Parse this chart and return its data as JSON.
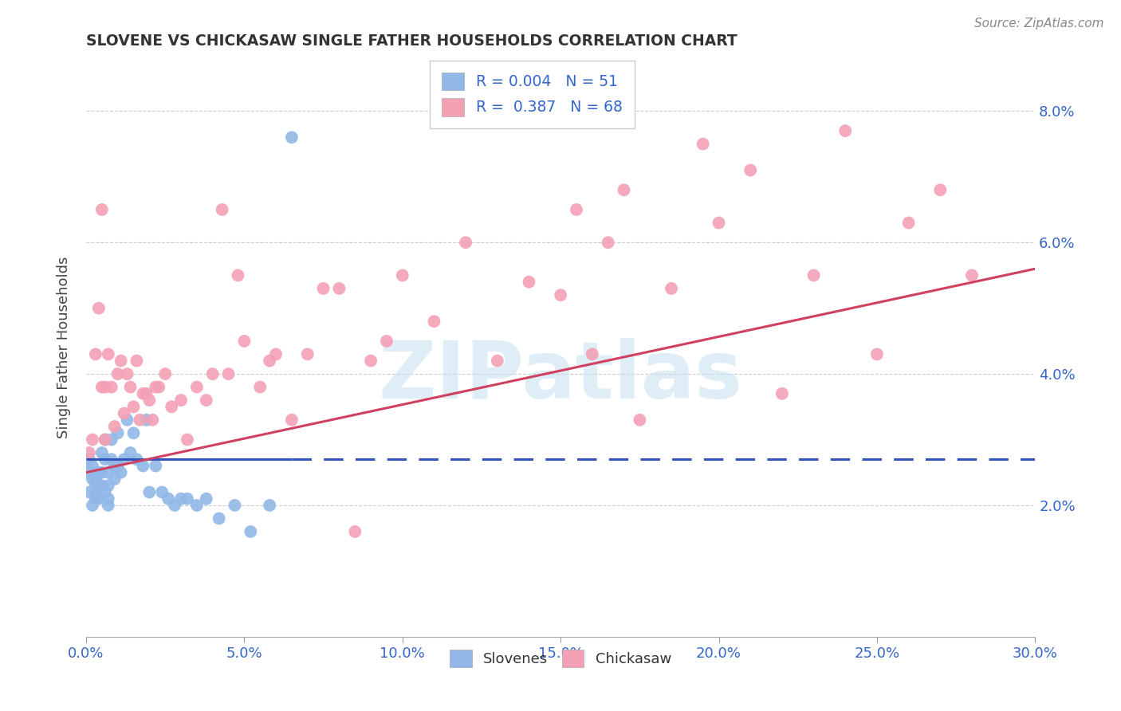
{
  "title": "SLOVENE VS CHICKASAW SINGLE FATHER HOUSEHOLDS CORRELATION CHART",
  "source": "Source: ZipAtlas.com",
  "ylabel": "Single Father Households",
  "xlabel_ticks": [
    "0.0%",
    "5.0%",
    "10.0%",
    "15.0%",
    "20.0%",
    "25.0%",
    "30.0%"
  ],
  "ylabel_ticks": [
    "2.0%",
    "4.0%",
    "6.0%",
    "8.0%"
  ],
  "xlim": [
    0.0,
    0.3
  ],
  "ylim": [
    -0.002,
    0.09
  ],
  "plot_ylim": [
    0.0,
    0.088
  ],
  "slovene_R": 0.004,
  "slovene_N": 51,
  "chickasaw_R": 0.387,
  "chickasaw_N": 68,
  "slovene_color": "#91B8E8",
  "chickasaw_color": "#F4A0B5",
  "trend_slovene_color": "#3355BB",
  "trend_chickasaw_color": "#D04060",
  "watermark_color": "#C5DFF0",
  "slovene_x": [
    0.001,
    0.001,
    0.001,
    0.002,
    0.002,
    0.002,
    0.003,
    0.003,
    0.003,
    0.003,
    0.004,
    0.004,
    0.004,
    0.005,
    0.005,
    0.005,
    0.006,
    0.006,
    0.006,
    0.007,
    0.007,
    0.007,
    0.007,
    0.008,
    0.008,
    0.009,
    0.009,
    0.01,
    0.01,
    0.011,
    0.012,
    0.013,
    0.014,
    0.015,
    0.016,
    0.018,
    0.019,
    0.02,
    0.022,
    0.024,
    0.026,
    0.028,
    0.03,
    0.032,
    0.035,
    0.038,
    0.042,
    0.047,
    0.052,
    0.058,
    0.065
  ],
  "slovene_y": [
    0.027,
    0.025,
    0.022,
    0.026,
    0.024,
    0.02,
    0.023,
    0.024,
    0.022,
    0.021,
    0.025,
    0.023,
    0.021,
    0.028,
    0.025,
    0.023,
    0.03,
    0.027,
    0.022,
    0.025,
    0.023,
    0.021,
    0.02,
    0.03,
    0.027,
    0.026,
    0.024,
    0.031,
    0.026,
    0.025,
    0.027,
    0.033,
    0.028,
    0.031,
    0.027,
    0.026,
    0.033,
    0.022,
    0.026,
    0.022,
    0.021,
    0.02,
    0.021,
    0.021,
    0.02,
    0.021,
    0.018,
    0.02,
    0.016,
    0.02,
    0.076
  ],
  "chickasaw_x": [
    0.001,
    0.002,
    0.003,
    0.004,
    0.005,
    0.005,
    0.006,
    0.006,
    0.007,
    0.008,
    0.009,
    0.01,
    0.011,
    0.012,
    0.013,
    0.014,
    0.015,
    0.016,
    0.017,
    0.018,
    0.019,
    0.02,
    0.021,
    0.022,
    0.023,
    0.025,
    0.027,
    0.03,
    0.032,
    0.035,
    0.038,
    0.04,
    0.043,
    0.045,
    0.048,
    0.05,
    0.055,
    0.058,
    0.06,
    0.065,
    0.07,
    0.075,
    0.08,
    0.085,
    0.09,
    0.095,
    0.1,
    0.11,
    0.12,
    0.13,
    0.14,
    0.15,
    0.155,
    0.16,
    0.165,
    0.17,
    0.175,
    0.185,
    0.195,
    0.2,
    0.21,
    0.22,
    0.23,
    0.24,
    0.25,
    0.26,
    0.27,
    0.28
  ],
  "chickasaw_y": [
    0.028,
    0.03,
    0.043,
    0.05,
    0.038,
    0.065,
    0.038,
    0.03,
    0.043,
    0.038,
    0.032,
    0.04,
    0.042,
    0.034,
    0.04,
    0.038,
    0.035,
    0.042,
    0.033,
    0.037,
    0.037,
    0.036,
    0.033,
    0.038,
    0.038,
    0.04,
    0.035,
    0.036,
    0.03,
    0.038,
    0.036,
    0.04,
    0.065,
    0.04,
    0.055,
    0.045,
    0.038,
    0.042,
    0.043,
    0.033,
    0.043,
    0.053,
    0.053,
    0.016,
    0.042,
    0.045,
    0.055,
    0.048,
    0.06,
    0.042,
    0.054,
    0.052,
    0.065,
    0.043,
    0.06,
    0.068,
    0.033,
    0.053,
    0.075,
    0.063,
    0.071,
    0.037,
    0.055,
    0.077,
    0.043,
    0.063,
    0.068,
    0.055
  ],
  "slovene_trend_x_solid_end": 0.065,
  "trend_line_y_start_slovene": 0.027,
  "trend_line_y_end_slovene": 0.027,
  "trend_line_y_start_chickasaw": 0.025,
  "trend_line_y_end_chickasaw": 0.056
}
